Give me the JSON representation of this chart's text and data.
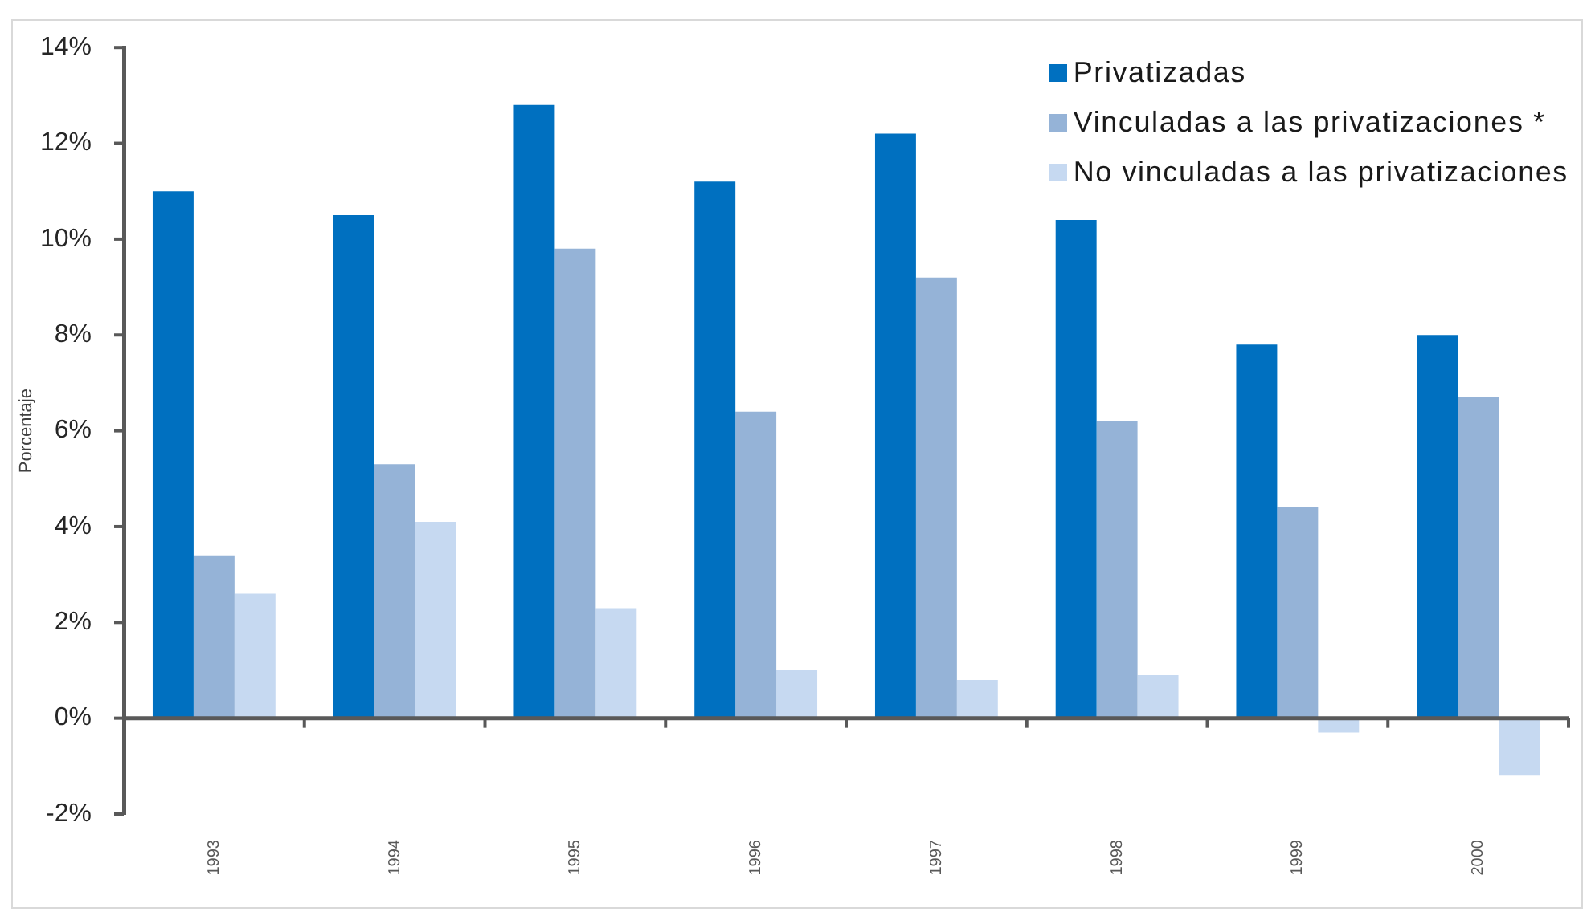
{
  "chart_data": {
    "type": "bar",
    "ylabel": "Porcentaje",
    "categories": [
      "1993",
      "1994",
      "1995",
      "1996",
      "1997",
      "1998",
      "1999",
      "2000"
    ],
    "series": [
      {
        "name": "Privatizadas",
        "color": "#0070c0",
        "values": [
          11.0,
          10.5,
          12.8,
          11.2,
          12.2,
          10.4,
          7.8,
          8.0
        ]
      },
      {
        "name": "Vinculadas a las privatizaciones *",
        "color": "#95b3d7",
        "values": [
          3.4,
          5.3,
          9.8,
          6.4,
          9.2,
          6.2,
          4.4,
          6.7
        ]
      },
      {
        "name": "No vinculadas a las privatizaciones",
        "color": "#c6d9f1",
        "values": [
          2.6,
          4.1,
          2.3,
          1.0,
          0.8,
          0.9,
          -0.3,
          -1.2
        ]
      }
    ],
    "ylim": [
      -2,
      14
    ],
    "yticks": [
      {
        "value": -2,
        "label": "-2%"
      },
      {
        "value": 0,
        "label": "0%"
      },
      {
        "value": 2,
        "label": "2%"
      },
      {
        "value": 4,
        "label": "4%"
      },
      {
        "value": 6,
        "label": "6%"
      },
      {
        "value": 8,
        "label": "8%"
      },
      {
        "value": 10,
        "label": "10%"
      },
      {
        "value": 12,
        "label": "12%"
      },
      {
        "value": 14,
        "label": "14%"
      }
    ],
    "grid": false,
    "legend": "top right"
  }
}
